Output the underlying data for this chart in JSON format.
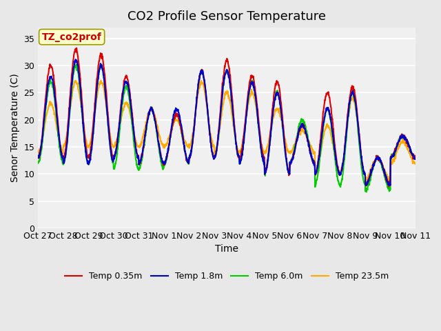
{
  "title": "CO2 Profile Sensor Temperature",
  "xlabel": "Time",
  "ylabel": "Senor Temperature (C)",
  "annotation": "TZ_co2prof",
  "ylim": [
    0,
    37
  ],
  "yticks": [
    0,
    5,
    10,
    15,
    20,
    25,
    30,
    35
  ],
  "series_colors": [
    "#dd0000",
    "#0000cc",
    "#00cc00",
    "#ffaa00"
  ],
  "series_labels": [
    "Temp 0.35m",
    "Temp 1.8m",
    "Temp 6.0m",
    "Temp 23.5m"
  ],
  "x_tick_labels": [
    "Oct 27",
    "Oct 28",
    "Oct 29",
    "Oct 30",
    "Oct 31",
    "Nov 1",
    "Nov 2",
    "Nov 3",
    "Nov 4",
    "Nov 5",
    "Nov 6",
    "Nov 7",
    "Nov 8",
    "Nov 9",
    "Nov 10",
    "Nov 11"
  ],
  "bg_color": "#e8e8e8",
  "plot_bg_color": "#f0f0f0",
  "grid_color": "#ffffff",
  "title_fontsize": 13,
  "label_fontsize": 10,
  "tick_fontsize": 9,
  "legend_fontsize": 9
}
